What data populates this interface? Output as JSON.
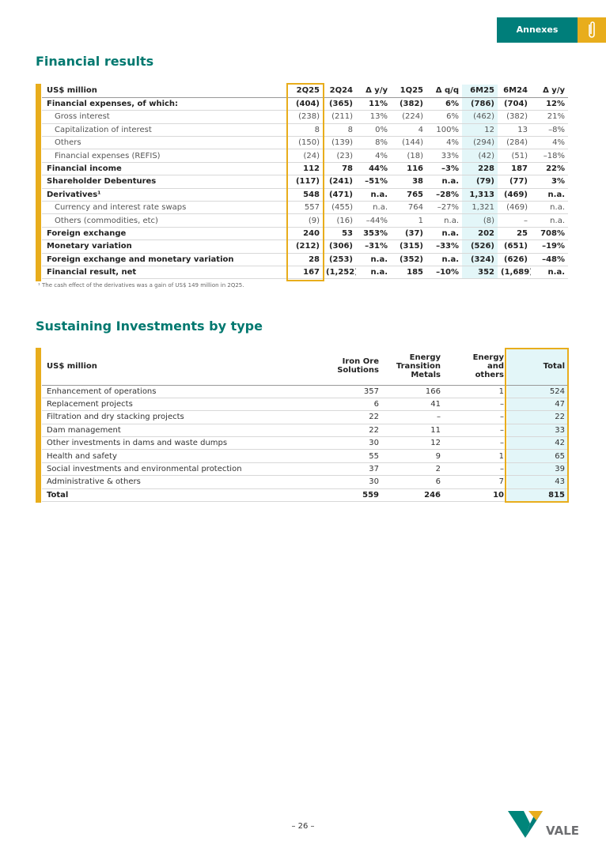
{
  "header": {
    "tab": "Annexes"
  },
  "financial": {
    "title": "Financial results",
    "columns": [
      "US$ million",
      "2Q25",
      "2Q24",
      "Δ y/y",
      "1Q25",
      "Δ q/q",
      "6M25",
      "6M24",
      "Δ y/y"
    ],
    "rows": [
      [
        "Financial expenses, of which:",
        "(404)",
        "(365)",
        "11%",
        "(382)",
        "6%",
        "(786)",
        "(704)",
        "12%"
      ],
      [
        "Gross interest",
        "(238)",
        "(211)",
        "13%",
        "(224)",
        "6%",
        "(462)",
        "(382)",
        "21%"
      ],
      [
        "Capitalization of interest",
        "8",
        "8",
        "0%",
        "4",
        "100%",
        "12",
        "13",
        "–8%"
      ],
      [
        "Others",
        "(150)",
        "(139)",
        "8%",
        "(144)",
        "4%",
        "(294)",
        "(284)",
        "4%"
      ],
      [
        "Financial expenses (REFIS)",
        "(24)",
        "(23)",
        "4%",
        "(18)",
        "33%",
        "(42)",
        "(51)",
        "–18%"
      ],
      [
        "Financial income",
        "112",
        "78",
        "44%",
        "116",
        "–3%",
        "228",
        "187",
        "22%"
      ],
      [
        "Shareholder Debentures",
        "(117)",
        "(241)",
        "–51%",
        "38",
        "n.a.",
        "(79)",
        "(77)",
        "3%"
      ],
      [
        "Derivatives¹",
        "548",
        "(471)",
        "n.a.",
        "765",
        "–28%",
        "1,313",
        "(469)",
        "n.a."
      ],
      [
        "Currency and interest rate swaps",
        "557",
        "(455)",
        "n.a.",
        "764",
        "–27%",
        "1,321",
        "(469)",
        "n.a."
      ],
      [
        "Others (commodities, etc)",
        "(9)",
        "(16)",
        "–44%",
        "1",
        "n.a.",
        "(8)",
        "–",
        "n.a."
      ],
      [
        "Foreign exchange",
        "240",
        "53",
        "353%",
        "(37)",
        "n.a.",
        "202",
        "25",
        "708%"
      ],
      [
        "Monetary variation",
        "(212)",
        "(306)",
        "–31%",
        "(315)",
        "–33%",
        "(526)",
        "(651)",
        "–19%"
      ],
      [
        "Foreign exchange and monetary variation",
        "28",
        "(253)",
        "n.a.",
        "(352)",
        "n.a.",
        "(324)",
        "(626)",
        "–48%"
      ],
      [
        "Financial result, net",
        "167",
        "(1,252)",
        "n.a.",
        "185",
        "–10%",
        "352",
        "(1,689)",
        "n.a."
      ]
    ],
    "footnote": "¹ The cash effect of the derivatives was a gain of US$ 149 million in 2Q25."
  },
  "sustaining": {
    "title": "Sustaining Investments by type",
    "columns": [
      "US$ million",
      "Iron Ore Solutions",
      "Energy Transition Metals",
      "Energy and others",
      "Total"
    ],
    "rows": [
      [
        "Enhancement of operations",
        "357",
        "166",
        "1",
        "524"
      ],
      [
        "Replacement projects",
        "6",
        "41",
        "–",
        "47"
      ],
      [
        "Filtration and dry stacking projects",
        "22",
        "–",
        "–",
        "22"
      ],
      [
        "Dam management",
        "22",
        "11",
        "–",
        "33"
      ],
      [
        "Other investments in dams and waste dumps",
        "30",
        "12",
        "–",
        "42"
      ],
      [
        "Health and safety",
        "55",
        "9",
        "1",
        "65"
      ],
      [
        "Social investments and environmental protection",
        "37",
        "2",
        "–",
        "39"
      ],
      [
        "Administrative & others",
        "30",
        "6",
        "7",
        "43"
      ],
      [
        "Total",
        "559",
        "246",
        "10",
        "815"
      ]
    ]
  },
  "footer": {
    "page": "– 26 –",
    "logo": "VALE"
  }
}
